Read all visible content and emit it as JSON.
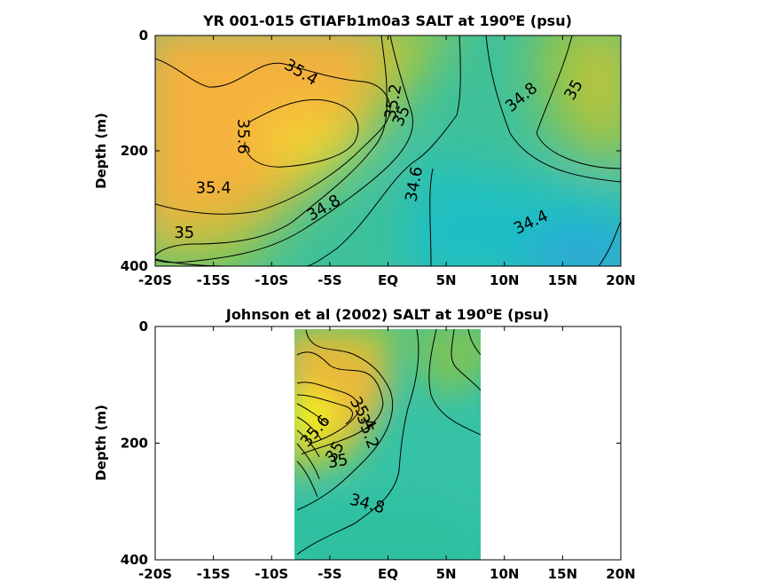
{
  "colors": {
    "high": "#f7e81e",
    "orange": "#f7b23c",
    "mid": "#8fc544",
    "teal": "#1fbfb3",
    "low": "#2b9ae0"
  },
  "chart_data": [
    {
      "type": "contour",
      "title": "YR 001-015 GTIAFb1m0a3 SALT at 190",
      "title_sup": "o",
      "title_suffix": "E (psu)",
      "ylabel": "Depth (m)",
      "xlabel": "",
      "xlim": [
        -20,
        20
      ],
      "ylim": [
        0,
        400
      ],
      "y_reversed": true,
      "x_ticks": [
        -20,
        -15,
        -10,
        -5,
        0,
        5,
        10,
        15,
        20
      ],
      "x_tick_labels": [
        "-20S",
        "-15S",
        "-10S",
        "-5S",
        "EQ",
        "5N",
        "10N",
        "15N",
        "20N"
      ],
      "y_ticks": [
        0,
        200,
        400
      ],
      "y_tick_labels": [
        "0",
        "200",
        "400"
      ],
      "contour_labels": [
        {
          "text": "35.4",
          "x": -7.5,
          "y": 65,
          "rot": 30
        },
        {
          "text": "35.2",
          "x": 0.5,
          "y": 115,
          "rot": -80
        },
        {
          "text": "35",
          "x": 1.2,
          "y": 140,
          "rot": -65
        },
        {
          "text": "35.6",
          "x": -12.5,
          "y": 175,
          "rot": 90
        },
        {
          "text": "35.4",
          "x": -15,
          "y": 265,
          "rot": 0
        },
        {
          "text": "34.8",
          "x": -5.5,
          "y": 300,
          "rot": -30
        },
        {
          "text": "34.6",
          "x": 2.3,
          "y": 258,
          "rot": -80
        },
        {
          "text": "34.8",
          "x": 11.5,
          "y": 108,
          "rot": -40
        },
        {
          "text": "35",
          "x": 16,
          "y": 95,
          "rot": -60
        },
        {
          "text": "34.4",
          "x": 12.3,
          "y": 325,
          "rot": -25
        },
        {
          "text": "35",
          "x": -17.5,
          "y": 343,
          "rot": 0
        }
      ]
    },
    {
      "type": "contour",
      "title": "Johnson et al (2002) SALT at 190",
      "title_sup": "o",
      "title_suffix": "E (psu)",
      "ylabel": "Depth (m)",
      "xlabel": "",
      "xlim": [
        -20,
        20
      ],
      "ylim": [
        0,
        400
      ],
      "y_reversed": true,
      "data_x_range": [
        -8,
        8
      ],
      "x_ticks": [
        -20,
        -15,
        -10,
        -5,
        0,
        5,
        10,
        15,
        20
      ],
      "x_tick_labels": [
        "-20S",
        "-15S",
        "-10S",
        "-5S",
        "EQ",
        "5N",
        "10N",
        "15N",
        "20N"
      ],
      "y_ticks": [
        0,
        200,
        400
      ],
      "y_tick_labels": [
        "0",
        "200",
        "400"
      ],
      "contour_labels": [
        {
          "text": "35.4",
          "x": -2.2,
          "y": 150,
          "rot": 60
        },
        {
          "text": "35.2",
          "x": -1.8,
          "y": 180,
          "rot": 70
        },
        {
          "text": "35",
          "x": -4.5,
          "y": 215,
          "rot": -60
        },
        {
          "text": "35",
          "x": -4.3,
          "y": 232,
          "rot": -10
        },
        {
          "text": "35.6",
          "x": -6.2,
          "y": 180,
          "rot": -50
        },
        {
          "text": "34.8",
          "x": -1.8,
          "y": 305,
          "rot": 15
        }
      ]
    }
  ]
}
